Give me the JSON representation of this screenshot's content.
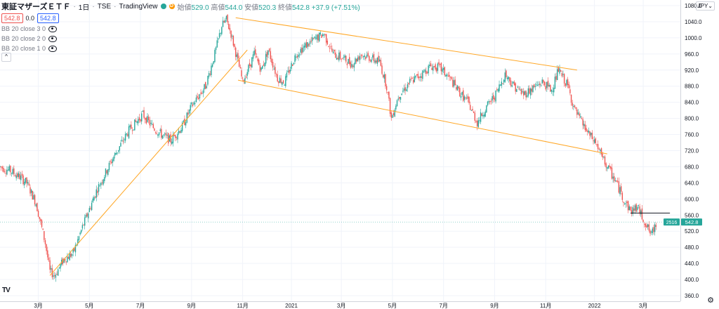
{
  "header": {
    "title": "東証マザーズＥＴＦ",
    "interval": "1日",
    "exchange": "TSE",
    "source": "TradingView",
    "open_label": "始値",
    "open": "529.0",
    "high_label": "高値",
    "high": "544.0",
    "low_label": "安値",
    "low": "520.3",
    "close_label": "終値",
    "close": "542.8",
    "change": "+37.9 (+7.51%)"
  },
  "quick": {
    "sell": "542.8",
    "spread": "0.0",
    "buy": "542.8"
  },
  "indicators": [
    "BB 20 close 3 0",
    "BB 20 close 2 0",
    "BB 20 close 1 0"
  ],
  "currency": "JPY",
  "price_tag": {
    "symbol": "2516",
    "price": "542.8"
  },
  "chart_data": {
    "type": "candlestick",
    "y_ticks": [
      360,
      400,
      440,
      480,
      520,
      560,
      600,
      640,
      680,
      720,
      760,
      800,
      840,
      880,
      920,
      960,
      1000,
      1040,
      1080
    ],
    "y_tick_labels": [
      "360.0",
      "400.0",
      "440.0",
      "480.0",
      "520.0",
      "560.0",
      "600.0",
      "640.0",
      "680.0",
      "720.0",
      "760.0",
      "800.0",
      "840.0",
      "880.0",
      "920.0",
      "960.0",
      "1000.0",
      "1040.0",
      "1080.0"
    ],
    "ylim": [
      346,
      1094
    ],
    "x_ticks": [
      {
        "label": "3月",
        "t": 6
      },
      {
        "label": "5月",
        "t": 50
      },
      {
        "label": "7月",
        "t": 94
      },
      {
        "label": "9月",
        "t": 138
      },
      {
        "label": "11月",
        "t": 182
      },
      {
        "label": "2021",
        "t": 224
      },
      {
        "label": "3月",
        "t": 267
      },
      {
        "label": "5月",
        "t": 311
      },
      {
        "label": "7月",
        "t": 355
      },
      {
        "label": "9月",
        "t": 399
      },
      {
        "label": "11月",
        "t": 443
      },
      {
        "label": "2022",
        "t": 485
      },
      {
        "label": "3月",
        "t": 527
      }
    ],
    "x_range": [
      -27,
      559
    ],
    "price_path": [
      [
        -27,
        680
      ],
      [
        -18,
        670
      ],
      [
        -10,
        655
      ],
      [
        -4,
        640
      ],
      [
        4,
        590
      ],
      [
        12,
        490
      ],
      [
        16,
        420
      ],
      [
        20,
        410
      ],
      [
        28,
        450
      ],
      [
        36,
        465
      ],
      [
        44,
        530
      ],
      [
        56,
        620
      ],
      [
        70,
        700
      ],
      [
        84,
        770
      ],
      [
        96,
        810
      ],
      [
        104,
        780
      ],
      [
        112,
        760
      ],
      [
        120,
        745
      ],
      [
        130,
        780
      ],
      [
        138,
        830
      ],
      [
        150,
        880
      ],
      [
        158,
        960
      ],
      [
        164,
        1030
      ],
      [
        168,
        1045
      ],
      [
        172,
        1010
      ],
      [
        178,
        940
      ],
      [
        182,
        890
      ],
      [
        192,
        960
      ],
      [
        198,
        920
      ],
      [
        204,
        970
      ],
      [
        212,
        900
      ],
      [
        218,
        890
      ],
      [
        228,
        960
      ],
      [
        236,
        980
      ],
      [
        246,
        1000
      ],
      [
        252,
        1010
      ],
      [
        260,
        960
      ],
      [
        268,
        950
      ],
      [
        276,
        935
      ],
      [
        284,
        960
      ],
      [
        292,
        950
      ],
      [
        300,
        940
      ],
      [
        306,
        880
      ],
      [
        310,
        800
      ],
      [
        316,
        855
      ],
      [
        326,
        890
      ],
      [
        336,
        910
      ],
      [
        344,
        930
      ],
      [
        352,
        925
      ],
      [
        360,
        900
      ],
      [
        370,
        860
      ],
      [
        376,
        840
      ],
      [
        384,
        790
      ],
      [
        390,
        820
      ],
      [
        400,
        860
      ],
      [
        408,
        910
      ],
      [
        416,
        880
      ],
      [
        424,
        860
      ],
      [
        432,
        875
      ],
      [
        440,
        890
      ],
      [
        448,
        870
      ],
      [
        454,
        920
      ],
      [
        462,
        880
      ],
      [
        468,
        820
      ],
      [
        474,
        790
      ],
      [
        480,
        760
      ],
      [
        486,
        740
      ],
      [
        492,
        700
      ],
      [
        496,
        680
      ],
      [
        504,
        640
      ],
      [
        510,
        600
      ],
      [
        516,
        570
      ],
      [
        522,
        580
      ],
      [
        528,
        545
      ],
      [
        534,
        510
      ],
      [
        538,
        540
      ]
    ],
    "channel_upper": [
      [
        176,
        1050
      ],
      [
        470,
        920
      ]
    ],
    "channel_lower": [
      [
        178,
        895
      ],
      [
        496,
        712
      ]
    ],
    "support_line": [
      [
        16,
        410
      ],
      [
        186,
        970
      ]
    ],
    "horizontal_line": {
      "t0": 516,
      "t1": 550,
      "value": 565
    },
    "last_price": 542.8
  }
}
